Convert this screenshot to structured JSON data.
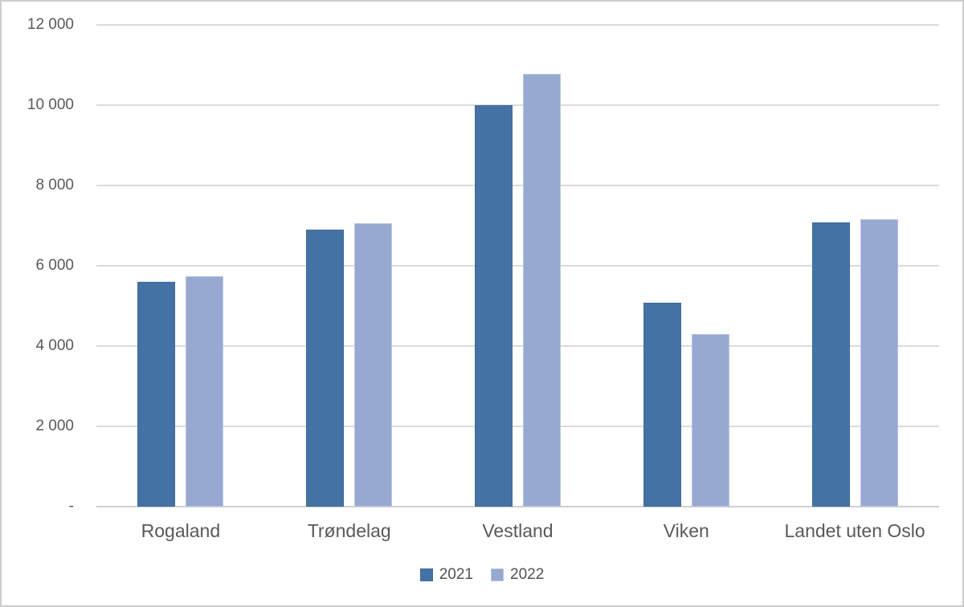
{
  "chart_data": {
    "type": "bar",
    "title": "",
    "xlabel": "",
    "ylabel": "",
    "categories": [
      "Rogaland",
      "Trøndelag",
      "Vestland",
      "Viken",
      "Landet uten Oslo"
    ],
    "series": [
      {
        "name": "2021",
        "color": "#4472A4",
        "border_color": "#3E6B9B",
        "values": [
          5600,
          6900,
          10000,
          5080,
          7090
        ]
      },
      {
        "name": "2022",
        "color": "#97A9D1",
        "border_color": "#BAC5E1",
        "values": [
          5750,
          7060,
          10790,
          4310,
          7170
        ]
      }
    ],
    "ylim": [
      0,
      12000
    ],
    "yticks": [
      {
        "value": 0,
        "label": "-"
      },
      {
        "value": 2000,
        "label": "2 000"
      },
      {
        "value": 4000,
        "label": "4 000"
      },
      {
        "value": 6000,
        "label": "6 000"
      },
      {
        "value": 8000,
        "label": "8 000"
      },
      {
        "value": 10000,
        "label": "10 000"
      },
      {
        "value": 12000,
        "label": "12 000"
      }
    ],
    "grid": true,
    "legend_position": "bottom",
    "colors": {
      "text": "#595959",
      "gridline": "#DBDBDB",
      "axis": "#CFCFCF",
      "background": "#FFFFFF",
      "frame_border": "#CDCDCD"
    }
  }
}
